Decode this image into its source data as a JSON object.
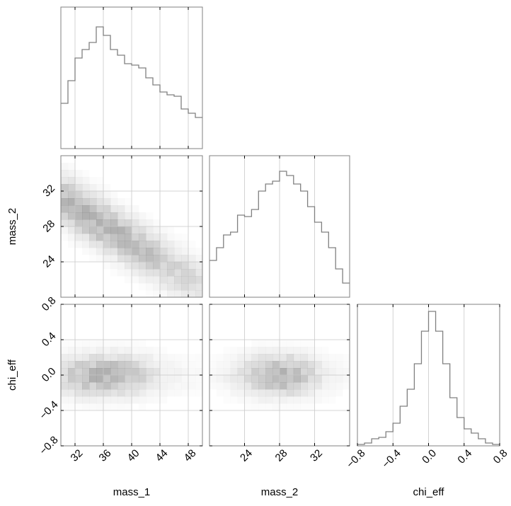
{
  "chart_data": {
    "type": "corner",
    "parameters": [
      "mass_1",
      "mass_2",
      "chi_eff"
    ],
    "axis_labels": {
      "mass_1": "mass_1",
      "mass_2": "mass_2",
      "chi_eff": "chi_eff"
    },
    "ranges": {
      "mass_1": [
        30,
        50
      ],
      "mass_2": [
        20,
        36
      ],
      "chi_eff": [
        -0.8,
        0.8
      ]
    },
    "ticks": {
      "mass_1": {
        "values": [
          32,
          36,
          40,
          44,
          48
        ],
        "labels": [
          "32",
          "36",
          "40",
          "44",
          "48"
        ]
      },
      "mass_2": {
        "values": [
          24,
          28,
          32
        ],
        "labels": [
          "24",
          "28",
          "32"
        ]
      },
      "chi_eff": {
        "values": [
          -0.8,
          -0.4,
          0.0,
          0.4,
          0.8
        ],
        "labels": [
          "−0.8",
          "−0.4",
          "0.0",
          "0.4",
          "0.8"
        ]
      }
    },
    "grid": true,
    "marginal_histograms": {
      "mass_1": [
        0.32,
        0.48,
        0.64,
        0.7,
        0.75,
        0.86,
        0.8,
        0.7,
        0.66,
        0.6,
        0.59,
        0.57,
        0.5,
        0.45,
        0.4,
        0.38,
        0.37,
        0.28,
        0.25,
        0.22
      ],
      "mass_2": [
        0.26,
        0.35,
        0.44,
        0.46,
        0.58,
        0.57,
        0.62,
        0.75,
        0.8,
        0.82,
        0.89,
        0.86,
        0.8,
        0.75,
        0.64,
        0.53,
        0.46,
        0.35,
        0.2,
        0.1
      ],
      "chi_eff": [
        0.01,
        0.02,
        0.05,
        0.06,
        0.1,
        0.16,
        0.28,
        0.4,
        0.58,
        0.81,
        0.95,
        0.81,
        0.58,
        0.34,
        0.2,
        0.12,
        0.09,
        0.05,
        0.02,
        0.01
      ]
    },
    "joint_distributions": [
      {
        "x": "mass_1",
        "y": "mass_2",
        "shape": "negatively correlated band from (32, 30) toward (48, 22)"
      },
      {
        "x": "mass_1",
        "y": "chi_eff",
        "shape": "centered near chi_eff 0.0, mass_1 peak near 36"
      },
      {
        "x": "mass_2",
        "y": "chi_eff",
        "shape": "centered near chi_eff 0.0, mass_2 peak near 28"
      }
    ],
    "colors": {
      "hist_line": "#808080",
      "density": "#808080",
      "grid": "#c8c8c8",
      "axes": "#808080"
    }
  }
}
